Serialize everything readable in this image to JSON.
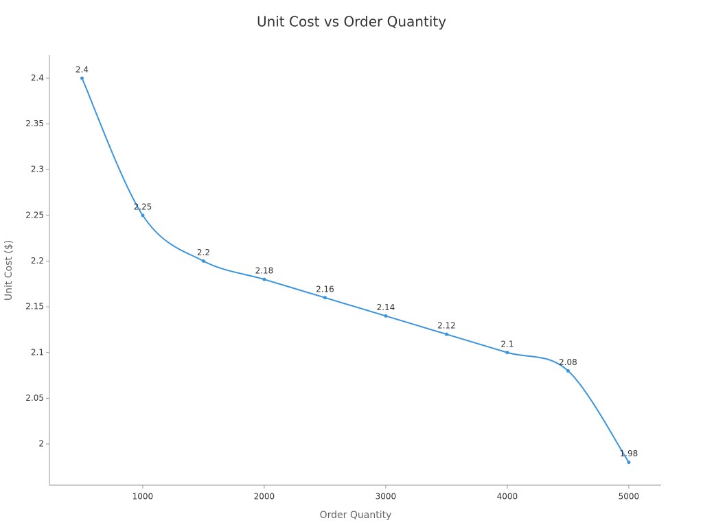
{
  "chart_data": {
    "type": "line",
    "title": "Unit Cost vs Order Quantity",
    "x_label": "Order Quantity",
    "y_label": "Unit Cost ($)",
    "x": [
      500,
      1000,
      1500,
      2000,
      2500,
      3000,
      3500,
      4000,
      4500,
      5000
    ],
    "series": [
      {
        "name": "Unit Cost",
        "color": "#3b94e0",
        "values": [
          2.4,
          2.25,
          2.2,
          2.18,
          2.16,
          2.14,
          2.12,
          2.1,
          2.08,
          1.98
        ]
      }
    ],
    "xlim": [
      232,
      5266
    ],
    "xticks": [
      1000,
      2000,
      3000,
      4000,
      5000
    ],
    "ylim": [
      1.955,
      2.4255
    ],
    "yticks": [
      2,
      2.05,
      2.1,
      2.15,
      2.2,
      2.25,
      2.3,
      2.35,
      2.4
    ]
  }
}
